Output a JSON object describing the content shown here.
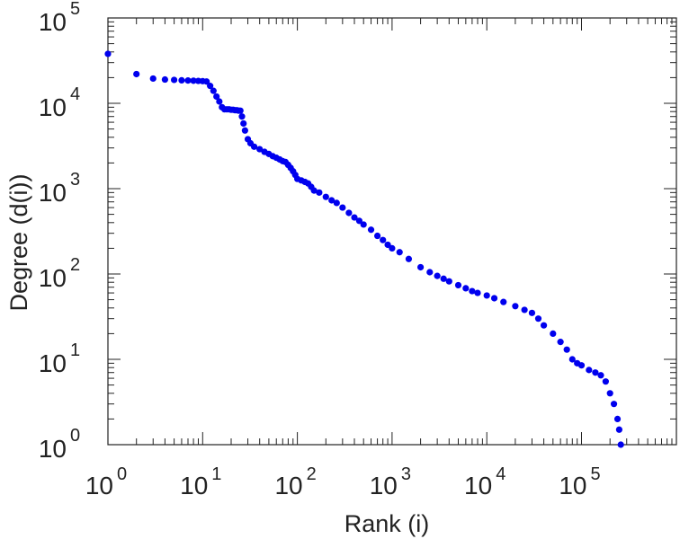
{
  "chart_data": {
    "type": "scatter",
    "xlabel": "Rank (i)",
    "ylabel": "Degree (d(i))",
    "xscale": "log",
    "yscale": "log",
    "xlim": [
      1,
      1000000
    ],
    "ylim": [
      1,
      100000
    ],
    "x_ticks": [
      {
        "base": "10",
        "exp": "0"
      },
      {
        "base": "10",
        "exp": "1"
      },
      {
        "base": "10",
        "exp": "2"
      },
      {
        "base": "10",
        "exp": "3"
      },
      {
        "base": "10",
        "exp": "4"
      },
      {
        "base": "10",
        "exp": "5"
      }
    ],
    "y_ticks": [
      {
        "base": "10",
        "exp": "0"
      },
      {
        "base": "10",
        "exp": "1"
      },
      {
        "base": "10",
        "exp": "2"
      },
      {
        "base": "10",
        "exp": "3"
      },
      {
        "base": "10",
        "exp": "4"
      },
      {
        "base": "10",
        "exp": "5"
      }
    ],
    "grid": false,
    "series_color": "#0000ee",
    "points": [
      [
        1,
        38000
      ],
      [
        2,
        22000
      ],
      [
        3,
        19500
      ],
      [
        4,
        19000
      ],
      [
        5,
        18800
      ],
      [
        6,
        18600
      ],
      [
        7,
        18500
      ],
      [
        8,
        18400
      ],
      [
        9,
        18300
      ],
      [
        10,
        18200
      ],
      [
        11,
        18000
      ],
      [
        12,
        16000
      ],
      [
        13,
        14000
      ],
      [
        14,
        12000
      ],
      [
        15,
        10500
      ],
      [
        16,
        9000
      ],
      [
        17,
        8500
      ],
      [
        18,
        8500
      ],
      [
        19,
        8500
      ],
      [
        20,
        8400
      ],
      [
        21,
        8400
      ],
      [
        22,
        8300
      ],
      [
        23,
        8300
      ],
      [
        24,
        8200
      ],
      [
        25,
        8200
      ],
      [
        26,
        7000
      ],
      [
        27,
        5800
      ],
      [
        28,
        4800
      ],
      [
        30,
        3800
      ],
      [
        32,
        3400
      ],
      [
        35,
        3100
      ],
      [
        40,
        2900
      ],
      [
        45,
        2700
      ],
      [
        50,
        2550
      ],
      [
        55,
        2400
      ],
      [
        60,
        2300
      ],
      [
        65,
        2200
      ],
      [
        70,
        2100
      ],
      [
        75,
        2050
      ],
      [
        80,
        1900
      ],
      [
        85,
        1750
      ],
      [
        90,
        1600
      ],
      [
        95,
        1450
      ],
      [
        100,
        1300
      ],
      [
        110,
        1250
      ],
      [
        120,
        1200
      ],
      [
        130,
        1150
      ],
      [
        140,
        1050
      ],
      [
        150,
        950
      ],
      [
        170,
        900
      ],
      [
        200,
        800
      ],
      [
        230,
        730
      ],
      [
        260,
        680
      ],
      [
        300,
        600
      ],
      [
        350,
        520
      ],
      [
        400,
        460
      ],
      [
        450,
        420
      ],
      [
        500,
        380
      ],
      [
        600,
        330
      ],
      [
        700,
        280
      ],
      [
        800,
        250
      ],
      [
        900,
        220
      ],
      [
        1000,
        200
      ],
      [
        1200,
        180
      ],
      [
        1500,
        150
      ],
      [
        2000,
        120
      ],
      [
        2500,
        105
      ],
      [
        3000,
        95
      ],
      [
        3500,
        88
      ],
      [
        4000,
        82
      ],
      [
        5000,
        74
      ],
      [
        6000,
        68
      ],
      [
        7000,
        63
      ],
      [
        8000,
        60
      ],
      [
        10000,
        56
      ],
      [
        12000,
        52
      ],
      [
        15000,
        47
      ],
      [
        20000,
        42
      ],
      [
        25000,
        38
      ],
      [
        30000,
        35
      ],
      [
        35000,
        30
      ],
      [
        40000,
        25
      ],
      [
        50000,
        20
      ],
      [
        60000,
        16
      ],
      [
        70000,
        13
      ],
      [
        80000,
        10
      ],
      [
        90000,
        9
      ],
      [
        100000,
        8.5
      ],
      [
        120000,
        7.5
      ],
      [
        140000,
        7
      ],
      [
        160000,
        6.5
      ],
      [
        180000,
        5.5
      ],
      [
        200000,
        4
      ],
      [
        220000,
        3
      ],
      [
        240000,
        2
      ],
      [
        250000,
        1.5
      ],
      [
        260000,
        1
      ]
    ]
  }
}
